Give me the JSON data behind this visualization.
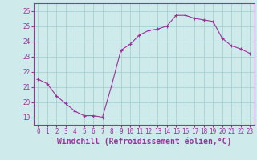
{
  "x": [
    0,
    1,
    2,
    3,
    4,
    5,
    6,
    7,
    8,
    9,
    10,
    11,
    12,
    13,
    14,
    15,
    16,
    17,
    18,
    19,
    20,
    21,
    22,
    23
  ],
  "y": [
    21.5,
    21.2,
    20.4,
    19.9,
    19.4,
    19.1,
    19.1,
    19.0,
    21.1,
    23.4,
    23.8,
    24.4,
    24.7,
    24.8,
    25.0,
    25.7,
    25.7,
    25.5,
    25.4,
    25.3,
    24.2,
    23.7,
    23.5,
    23.2
  ],
  "line_color": "#993399",
  "marker": "+",
  "markersize": 3.5,
  "linewidth": 0.8,
  "xlabel": "Windchill (Refroidissement éolien,°C)",
  "xlabel_fontsize": 7,
  "xlabel_color": "#993399",
  "ylim": [
    18.5,
    26.5
  ],
  "xlim": [
    -0.5,
    23.5
  ],
  "yticks": [
    19,
    20,
    21,
    22,
    23,
    24,
    25,
    26
  ],
  "xticks": [
    0,
    1,
    2,
    3,
    4,
    5,
    6,
    7,
    8,
    9,
    10,
    11,
    12,
    13,
    14,
    15,
    16,
    17,
    18,
    19,
    20,
    21,
    22,
    23
  ],
  "tick_fontsize": 5.5,
  "bg_color": "#ceeaea",
  "grid_color": "#a0cccc",
  "grid_linewidth": 0.5,
  "spine_color": "#993399",
  "linestyle": "solid"
}
